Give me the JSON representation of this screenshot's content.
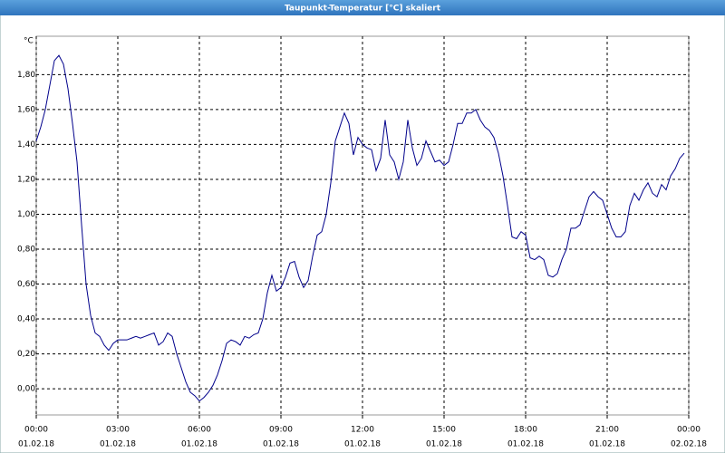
{
  "chart_data": {
    "type": "line",
    "title": "Taupunkt-Temperatur [°C] skaliert",
    "ylabel": "°C",
    "x": [
      0,
      10,
      20,
      30,
      40,
      50,
      60,
      70,
      80,
      90,
      100,
      110,
      120,
      130,
      140,
      150,
      160,
      170,
      180,
      190,
      200,
      210,
      220,
      230,
      240,
      250,
      260,
      270,
      280,
      290,
      300,
      310,
      320,
      330,
      340,
      350,
      360,
      370,
      380,
      390,
      400,
      410,
      420,
      430,
      440,
      450,
      460,
      470,
      480,
      490,
      500,
      510,
      520,
      530,
      540,
      550,
      560,
      570,
      580,
      590,
      600,
      610,
      620,
      630,
      640,
      650,
      660,
      670,
      680,
      690,
      700,
      710,
      720,
      730,
      740,
      750,
      760,
      770,
      780,
      790,
      800,
      810,
      820,
      830,
      840,
      850,
      860,
      870,
      880,
      890,
      900,
      910,
      920,
      930,
      940,
      950,
      960,
      970,
      980,
      990,
      1000,
      1010,
      1020,
      1030,
      1040,
      1050,
      1060,
      1070,
      1080,
      1090,
      1100,
      1110,
      1120,
      1130,
      1140,
      1150,
      1160,
      1170,
      1180,
      1190,
      1200,
      1210,
      1220,
      1230,
      1240,
      1250,
      1260,
      1270,
      1280,
      1290,
      1300,
      1310,
      1320,
      1330,
      1340,
      1350,
      1360,
      1370,
      1380,
      1390,
      1400,
      1410,
      1420,
      1430
    ],
    "series": [
      {
        "name": "Taupunkt-Temperatur",
        "color": "#00008b",
        "values": [
          1.42,
          1.5,
          1.6,
          1.74,
          1.88,
          1.91,
          1.86,
          1.72,
          1.52,
          1.3,
          0.94,
          0.6,
          0.42,
          0.32,
          0.3,
          0.25,
          0.22,
          0.26,
          0.28,
          0.28,
          0.28,
          0.29,
          0.3,
          0.29,
          0.3,
          0.31,
          0.32,
          0.25,
          0.27,
          0.32,
          0.3,
          0.2,
          0.12,
          0.04,
          -0.02,
          -0.04,
          -0.07,
          -0.05,
          -0.02,
          0.02,
          0.08,
          0.16,
          0.26,
          0.28,
          0.27,
          0.25,
          0.3,
          0.29,
          0.31,
          0.32,
          0.4,
          0.55,
          0.65,
          0.56,
          0.58,
          0.64,
          0.72,
          0.73,
          0.64,
          0.58,
          0.62,
          0.76,
          0.88,
          0.9,
          1.0,
          1.18,
          1.42,
          1.5,
          1.58,
          1.52,
          1.34,
          1.44,
          1.4,
          1.38,
          1.37,
          1.25,
          1.32,
          1.54,
          1.34,
          1.3,
          1.2,
          1.3,
          1.54,
          1.38,
          1.28,
          1.32,
          1.42,
          1.36,
          1.3,
          1.31,
          1.28,
          1.3,
          1.4,
          1.52,
          1.52,
          1.58,
          1.58,
          1.6,
          1.54,
          1.5,
          1.48,
          1.44,
          1.35,
          1.22,
          1.05,
          0.87,
          0.86,
          0.9,
          0.88,
          0.75,
          0.74,
          0.76,
          0.74,
          0.65,
          0.64,
          0.66,
          0.74,
          0.8,
          0.92,
          0.92,
          0.94,
          1.02,
          1.1,
          1.13,
          1.1,
          1.08,
          1.0,
          0.92,
          0.87,
          0.87,
          0.9,
          1.05,
          1.12,
          1.08,
          1.14,
          1.18,
          1.12,
          1.1,
          1.17,
          1.14,
          1.22,
          1.26,
          1.32,
          1.35
        ]
      }
    ],
    "xlim": [
      0,
      1440
    ],
    "xticks": [
      {
        "value": 0,
        "label": "00:00"
      },
      {
        "value": 180,
        "label": "03:00"
      },
      {
        "value": 360,
        "label": "06:00"
      },
      {
        "value": 540,
        "label": "09:00"
      },
      {
        "value": 720,
        "label": "12:00"
      },
      {
        "value": 900,
        "label": "15:00"
      },
      {
        "value": 1080,
        "label": "18:00"
      },
      {
        "value": 1260,
        "label": "21:00"
      },
      {
        "value": 1440,
        "label": "00:00"
      }
    ],
    "xtick_dates": [
      "01.02.18",
      "01.02.18",
      "01.02.18",
      "01.02.18",
      "01.02.18",
      "01.02.18",
      "01.02.18",
      "01.02.18",
      "02.02.18"
    ],
    "ylim": [
      -0.15,
      2.02
    ],
    "yticks": [
      {
        "value": 0,
        "label": "0,00"
      },
      {
        "value": 0.2,
        "label": "0,20"
      },
      {
        "value": 0.4,
        "label": "0,40"
      },
      {
        "value": 0.6,
        "label": "0,60"
      },
      {
        "value": 0.8,
        "label": "0,80"
      },
      {
        "value": 1,
        "label": "1,00"
      },
      {
        "value": 1.2,
        "label": "1,20"
      },
      {
        "value": 1.4,
        "label": "1,40"
      },
      {
        "value": 1.6,
        "label": "1,60"
      },
      {
        "value": 1.8,
        "label": "1,80"
      }
    ],
    "grid": true
  }
}
